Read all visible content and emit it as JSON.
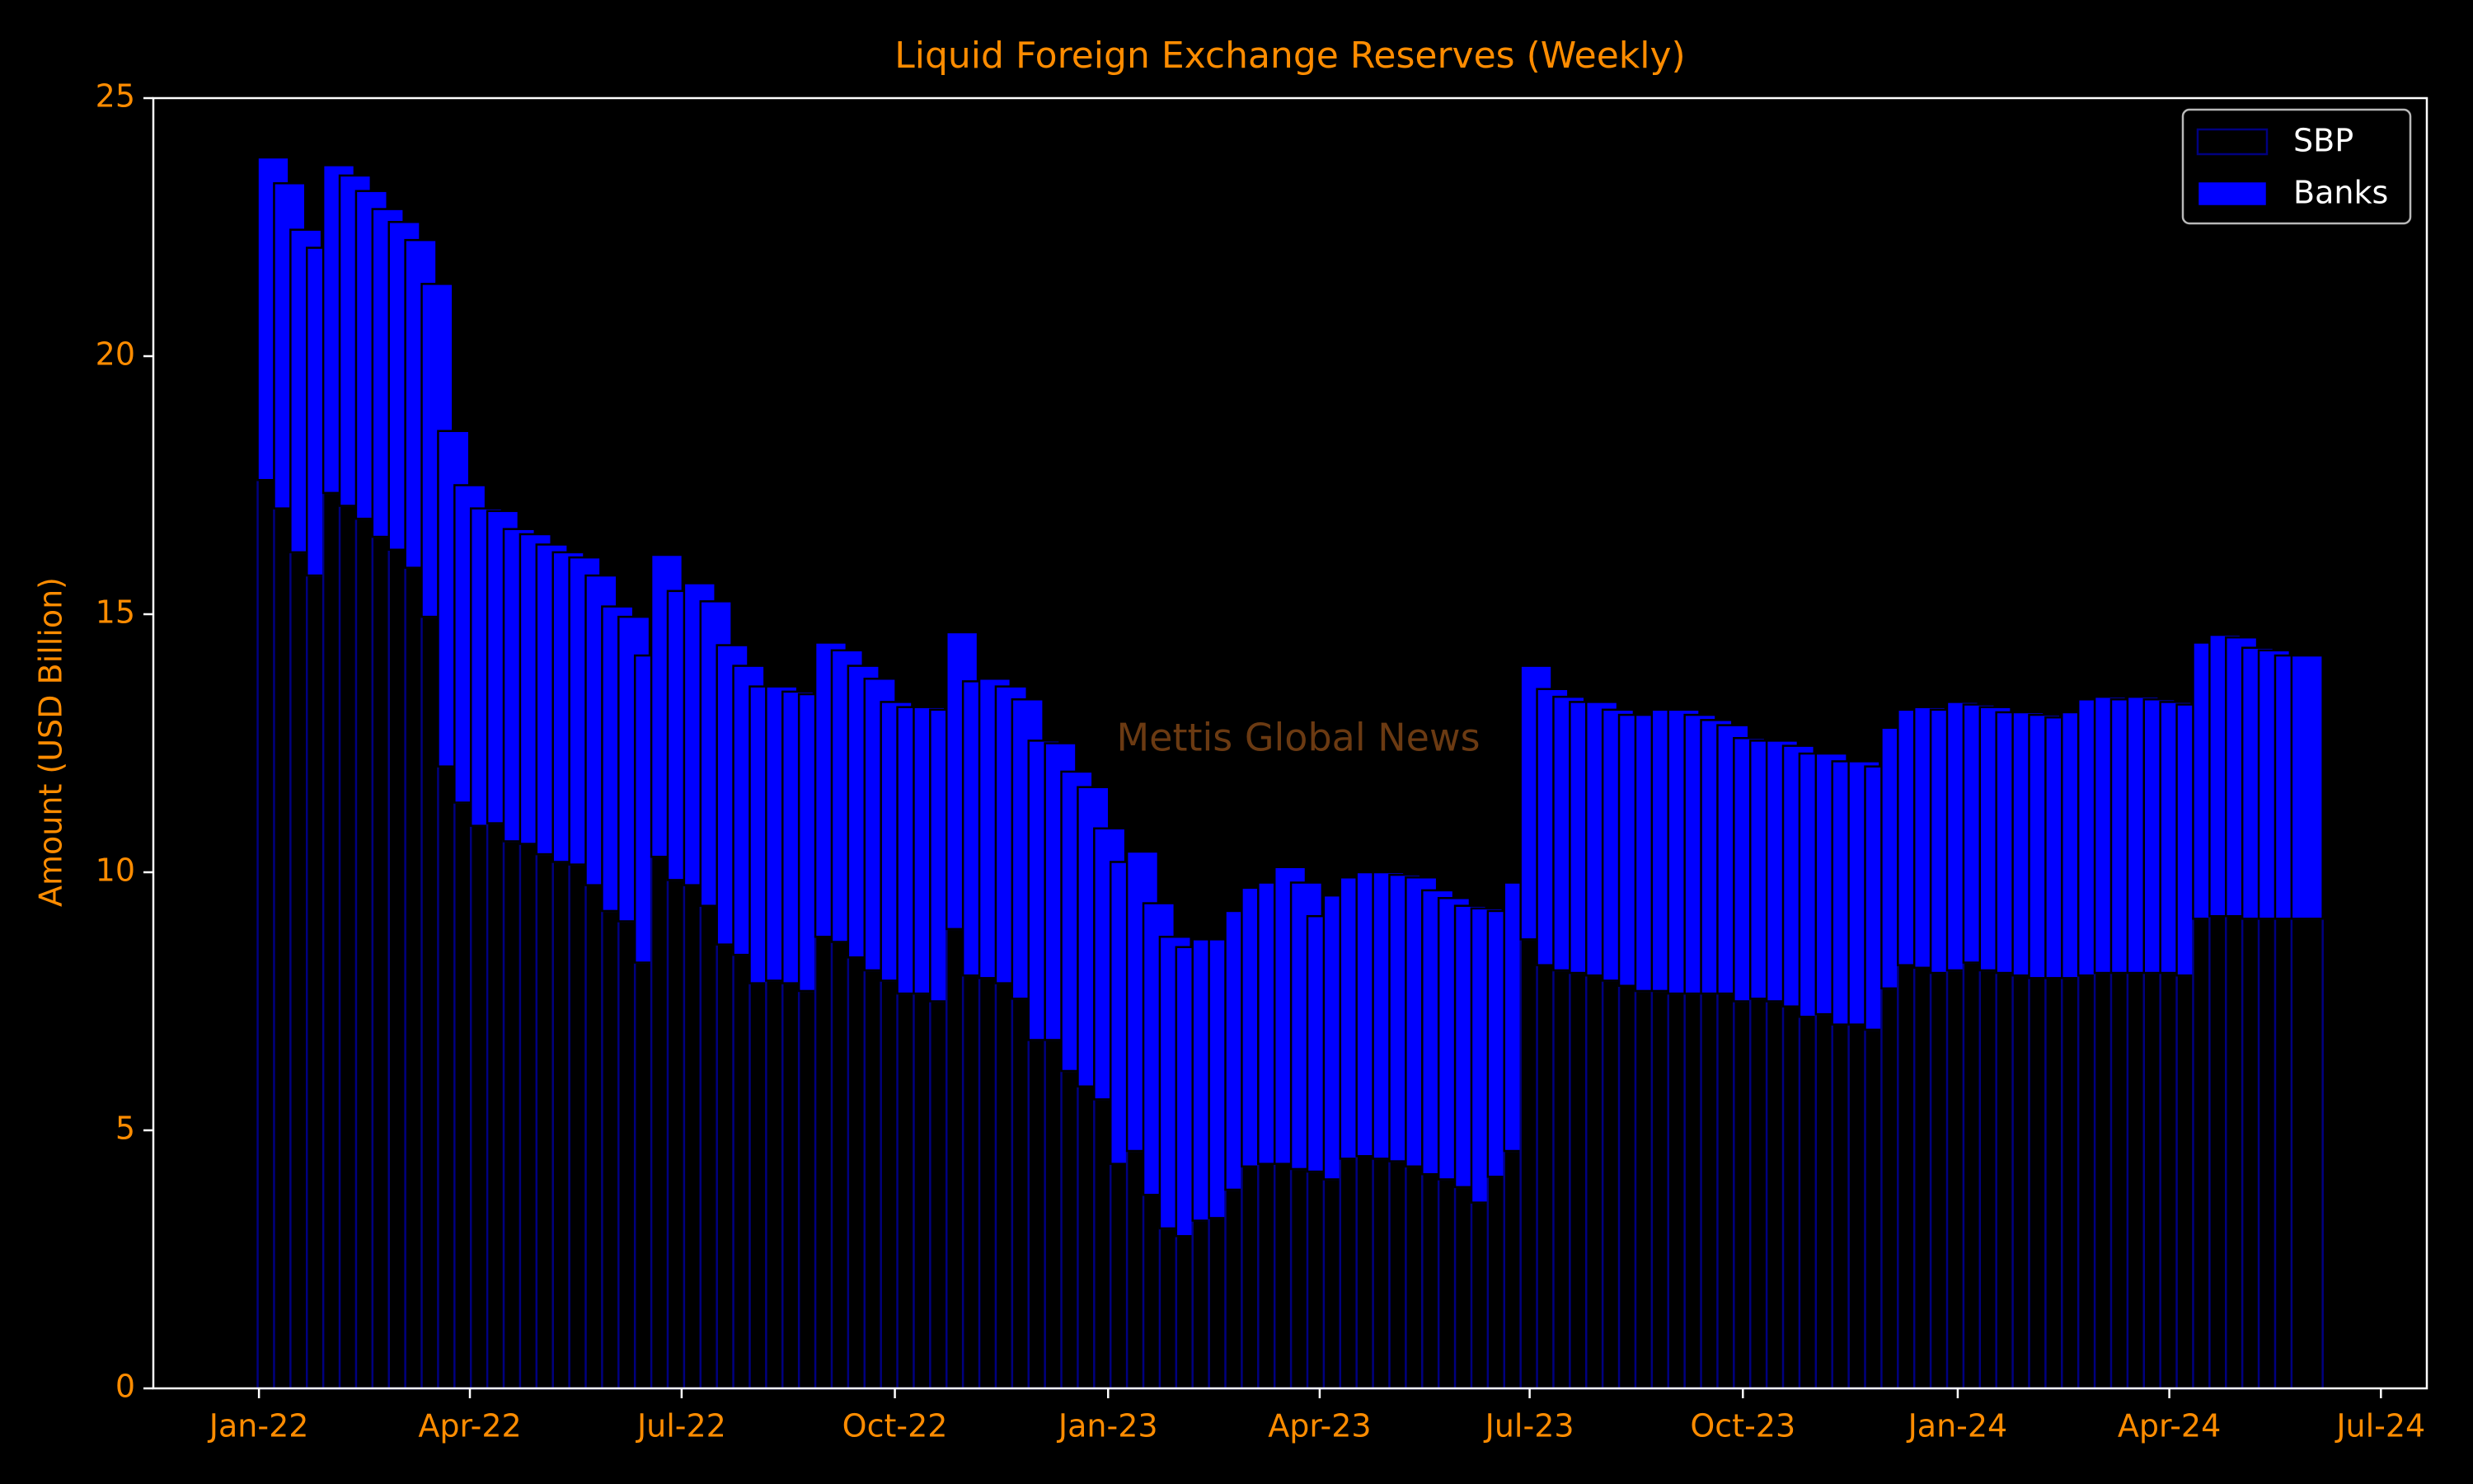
{
  "chart_data": {
    "type": "stacked_bar",
    "title": "Liquid Foreign Exchange Reserves (Weekly)",
    "y_label": "Amount (USD Billion)",
    "annotation": "Mettis Global News",
    "categories": [
      null,
      null,
      null,
      null,
      null,
      null,
      null,
      null,
      null,
      null,
      null,
      null,
      null,
      null,
      null,
      null,
      null,
      null,
      null,
      null,
      null,
      null,
      null,
      null,
      null,
      null,
      null,
      null,
      null,
      null,
      null,
      null,
      null,
      null,
      null,
      null,
      null,
      null,
      null,
      null,
      null,
      null,
      null,
      null,
      null,
      null,
      null,
      null,
      null,
      null,
      null,
      null,
      null,
      null,
      null,
      null,
      null,
      null,
      null,
      null,
      null,
      null,
      null,
      null,
      null,
      null,
      null,
      null,
      null,
      null,
      null,
      null,
      null,
      null,
      null,
      null,
      null,
      null,
      null,
      null,
      null,
      null,
      null,
      null,
      null,
      null,
      null,
      null,
      null,
      null,
      null,
      null,
      null,
      null,
      null,
      null,
      null,
      null,
      null,
      null,
      null,
      null,
      null,
      null,
      null,
      null,
      null,
      null,
      null,
      null,
      null,
      null,
      null,
      null,
      null,
      null,
      null,
      null,
      null,
      null,
      null,
      null,
      null,
      null,
      null
    ],
    "series": [
      {
        "name": "SBP",
        "color": "#000000",
        "edge": "#000080",
        "values": [
          17.6,
          17.05,
          16.2,
          15.75,
          17.35,
          17.1,
          16.85,
          16.5,
          16.25,
          15.9,
          14.95,
          12.05,
          11.35,
          10.9,
          10.95,
          10.6,
          10.55,
          10.35,
          10.2,
          10.15,
          9.75,
          9.25,
          9.05,
          8.25,
          10.3,
          9.85,
          9.75,
          9.35,
          8.6,
          8.4,
          7.85,
          7.9,
          7.85,
          7.7,
          8.75,
          8.65,
          8.35,
          8.1,
          7.9,
          7.65,
          7.65,
          7.5,
          8.9,
          8.0,
          7.95,
          7.85,
          7.55,
          6.75,
          6.75,
          6.15,
          5.85,
          5.6,
          4.35,
          4.6,
          3.75,
          3.1,
          2.95,
          3.25,
          3.3,
          3.85,
          4.3,
          4.35,
          4.35,
          4.25,
          4.2,
          4.05,
          4.45,
          4.5,
          4.45,
          4.4,
          4.3,
          4.15,
          4.05,
          3.9,
          3.6,
          4.1,
          4.6,
          8.7,
          8.2,
          8.1,
          8.05,
          8.0,
          7.9,
          7.8,
          7.7,
          7.7,
          7.65,
          7.65,
          7.65,
          7.65,
          7.5,
          7.55,
          7.5,
          7.4,
          7.2,
          7.25,
          7.05,
          7.05,
          6.95,
          7.75,
          8.2,
          8.15,
          8.05,
          8.1,
          8.25,
          8.1,
          8.05,
          8.0,
          7.95,
          7.95,
          7.95,
          8.0,
          8.05,
          8.05,
          8.05,
          8.05,
          8.05,
          8.0,
          9.1,
          9.15,
          9.15,
          9.1,
          9.1,
          9.1,
          9.1
        ]
      },
      {
        "name": "Banks",
        "color": "#0000ff",
        "edge": "#000000",
        "values": [
          6.25,
          6.3,
          6.25,
          6.35,
          6.35,
          6.4,
          6.35,
          6.35,
          6.35,
          6.35,
          6.45,
          6.5,
          6.15,
          6.15,
          6.05,
          6.05,
          6.0,
          6.0,
          6.0,
          5.95,
          6.0,
          5.9,
          5.9,
          5.95,
          5.85,
          5.6,
          5.85,
          5.9,
          5.8,
          5.6,
          5.75,
          5.7,
          5.65,
          5.75,
          5.7,
          5.65,
          5.65,
          5.65,
          5.4,
          5.55,
          5.55,
          5.65,
          5.75,
          5.7,
          5.8,
          5.75,
          5.8,
          5.8,
          5.75,
          5.8,
          5.8,
          5.25,
          5.85,
          5.8,
          5.65,
          5.65,
          5.6,
          5.45,
          5.4,
          5.4,
          5.4,
          5.45,
          5.75,
          5.55,
          4.95,
          5.5,
          5.45,
          5.5,
          5.55,
          5.55,
          5.6,
          5.5,
          5.45,
          5.45,
          5.7,
          5.15,
          5.2,
          5.3,
          5.35,
          5.3,
          5.25,
          5.3,
          5.25,
          5.25,
          5.35,
          5.45,
          5.5,
          5.4,
          5.3,
          5.2,
          5.1,
          5.0,
          5.05,
          5.05,
          5.1,
          5.05,
          5.1,
          5.1,
          5.1,
          5.05,
          4.95,
          5.05,
          5.1,
          5.2,
          5.0,
          5.1,
          5.05,
          5.1,
          5.1,
          5.05,
          5.15,
          5.35,
          5.35,
          5.3,
          5.35,
          5.3,
          5.25,
          5.25,
          5.35,
          5.45,
          5.4,
          5.25,
          5.2,
          5.1,
          5.1
        ]
      }
    ],
    "xlim": [
      -7.31,
      131.3
    ],
    "xticks": [
      {
        "value": -0.87,
        "label": "Jan-22"
      },
      {
        "value": 11.99,
        "label": "Apr-22"
      },
      {
        "value": 24.9,
        "label": "Jul-22"
      },
      {
        "value": 37.9,
        "label": "Oct-22"
      },
      {
        "value": 50.9,
        "label": "Jan-23"
      },
      {
        "value": 63.8,
        "label": "Apr-23"
      },
      {
        "value": 76.6,
        "label": "Jul-23"
      },
      {
        "value": 89.6,
        "label": "Oct-23"
      },
      {
        "value": 102.7,
        "label": "Jan-24"
      },
      {
        "value": 115.6,
        "label": "Apr-24"
      },
      {
        "value": 128.5,
        "label": "Jul-24"
      }
    ],
    "ylim": [
      0,
      25
    ],
    "yticks": [
      0,
      5,
      10,
      15,
      20,
      25
    ],
    "legend": "upper right",
    "grid": false
  }
}
